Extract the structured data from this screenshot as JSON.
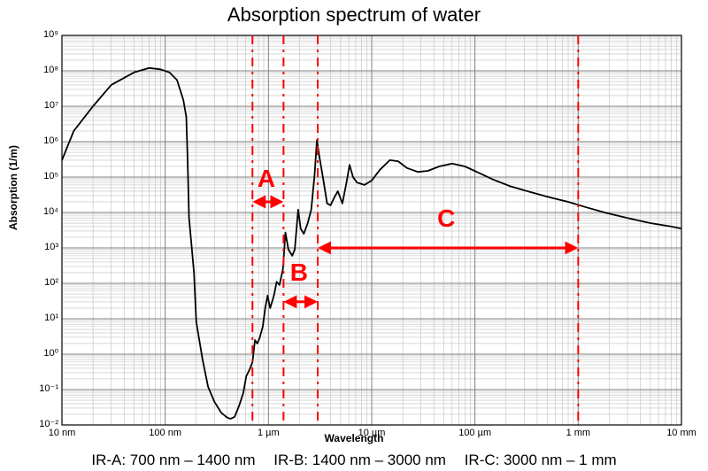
{
  "chart": {
    "type": "line",
    "title": "Absorption spectrum of water",
    "title_fontsize": 22,
    "xlabel": "Wavelength",
    "ylabel": "Absorption (1/m)",
    "label_fontsize": 12,
    "label_fontweight": "bold",
    "background_color": "#ffffff",
    "plot_border_color": "#000000",
    "grid_major_color": "#808080",
    "grid_minor_color": "#bfbfbf",
    "line_color": "#000000",
    "line_width": 1.8,
    "region_line_color": "#ff0000",
    "region_line_width": 2.0,
    "region_line_dash": "10 6 3 6",
    "arrow_color": "#ff0000",
    "arrow_width": 3.0,
    "region_label_color": "#ff0000",
    "region_label_fontsize": 28,
    "xaxis": {
      "scale": "log",
      "unit": "nm",
      "min": 10,
      "max": 10000000,
      "tick_labels": [
        "10 nm",
        "100 nm",
        "1 µm",
        "10 µm",
        "100 µm",
        "1 mm",
        "10 mm"
      ],
      "tick_values_nm": [
        10,
        100,
        1000,
        10000,
        100000,
        1000000,
        10000000
      ]
    },
    "yaxis": {
      "scale": "log",
      "unit": "1/m",
      "min": 0.01,
      "max": 1000000000,
      "tick_labels": [
        "10⁻²",
        "10⁻¹",
        "10⁰",
        "10¹",
        "10²",
        "10³",
        "10⁴",
        "10⁵",
        "10⁶",
        "10⁷",
        "10⁸",
        "10⁹"
      ],
      "tick_exponents": [
        -2,
        -1,
        0,
        1,
        2,
        3,
        4,
        5,
        6,
        7,
        8,
        9
      ]
    },
    "regions": [
      {
        "id": "A",
        "label": "A",
        "start_nm": 700,
        "end_nm": 1400,
        "arrow_y_value": 20000,
        "label_y_value": 80000
      },
      {
        "id": "B",
        "label": "B",
        "start_nm": 1400,
        "end_nm": 3000,
        "arrow_y_value": 30,
        "label_y_value": 180
      },
      {
        "id": "C",
        "label": "C",
        "start_nm": 3000,
        "end_nm": 1000000,
        "arrow_y_value": 1000,
        "label_y_value": 6000
      }
    ],
    "series": {
      "name": "water-absorption",
      "points_nm_1perm": [
        [
          10,
          300000
        ],
        [
          13,
          2000000
        ],
        [
          20,
          10000000
        ],
        [
          30,
          40000000
        ],
        [
          50,
          90000000
        ],
        [
          70,
          120000000
        ],
        [
          90,
          110000000
        ],
        [
          110,
          90000000
        ],
        [
          130,
          55000000
        ],
        [
          150,
          15000000
        ],
        [
          160,
          5000000
        ],
        [
          165,
          300000
        ],
        [
          170,
          7000
        ],
        [
          180,
          1200
        ],
        [
          190,
          200
        ],
        [
          200,
          8
        ],
        [
          230,
          0.7
        ],
        [
          260,
          0.12
        ],
        [
          300,
          0.045
        ],
        [
          350,
          0.022
        ],
        [
          400,
          0.016
        ],
        [
          430,
          0.015
        ],
        [
          470,
          0.017
        ],
        [
          520,
          0.035
        ],
        [
          570,
          0.08
        ],
        [
          610,
          0.24
        ],
        [
          660,
          0.38
        ],
        [
          700,
          0.6
        ],
        [
          740,
          2.5
        ],
        [
          780,
          2.0
        ],
        [
          820,
          2.8
        ],
        [
          880,
          6
        ],
        [
          930,
          20
        ],
        [
          980,
          45
        ],
        [
          1040,
          20
        ],
        [
          1130,
          45
        ],
        [
          1200,
          110
        ],
        [
          1280,
          90
        ],
        [
          1380,
          250
        ],
        [
          1460,
          2700
        ],
        [
          1560,
          900
        ],
        [
          1700,
          600
        ],
        [
          1800,
          900
        ],
        [
          1940,
          12000
        ],
        [
          2050,
          3500
        ],
        [
          2200,
          2500
        ],
        [
          2400,
          5000
        ],
        [
          2600,
          12000
        ],
        [
          2800,
          120000
        ],
        [
          2950,
          1100000
        ],
        [
          3100,
          400000
        ],
        [
          3400,
          85000
        ],
        [
          3700,
          18000
        ],
        [
          4000,
          16000
        ],
        [
          4300,
          25000
        ],
        [
          4700,
          40000
        ],
        [
          5200,
          18000
        ],
        [
          5700,
          70000
        ],
        [
          6100,
          220000
        ],
        [
          6600,
          100000
        ],
        [
          7200,
          70000
        ],
        [
          8500,
          60000
        ],
        [
          10000,
          80000
        ],
        [
          12000,
          160000
        ],
        [
          15000,
          300000
        ],
        [
          18000,
          280000
        ],
        [
          22000,
          180000
        ],
        [
          28000,
          140000
        ],
        [
          35000,
          150000
        ],
        [
          45000,
          200000
        ],
        [
          60000,
          240000
        ],
        [
          80000,
          200000
        ],
        [
          110000,
          130000
        ],
        [
          150000,
          85000
        ],
        [
          220000,
          55000
        ],
        [
          320000,
          40000
        ],
        [
          500000,
          28000
        ],
        [
          800000,
          20000
        ],
        [
          1200000,
          14000
        ],
        [
          1800000,
          10000
        ],
        [
          3000000,
          7000
        ],
        [
          5000000,
          5000
        ],
        [
          8000000,
          4000
        ],
        [
          10000000,
          3500
        ]
      ]
    }
  },
  "legend": {
    "a": "IR-A: 700 nm – 1400 nm",
    "b": "IR-B: 1400 nm – 3000 nm",
    "c": "IR-C: 3000 nm – 1 mm"
  }
}
